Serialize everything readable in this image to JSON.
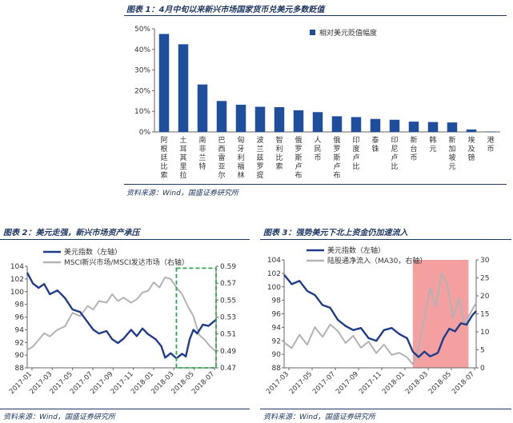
{
  "figures": [
    {
      "title": "图表 1：4月中旬以来新兴市场国家货币兑美元多数贬值",
      "source": "资料来源：Wind，国盛证券研究所"
    },
    {
      "title": "图表 2：美元走强，新兴市场资产承压",
      "source": "资料来源：Wind，国盛证券研究所"
    },
    {
      "title": "图表 3：强势美元下北上资金仍加速流入",
      "source": "资料来源：Wind，国盛证券研究所"
    }
  ],
  "chart_data": [
    {
      "type": "bar",
      "legend": "相对美元贬值幅度",
      "legend_position": "top-right",
      "categories": [
        "阿根廷比索",
        "土耳其里拉",
        "南非兰特",
        "巴西雷亚尔",
        "匈牙利福林",
        "波兰兹罗提",
        "智利比索",
        "俄罗斯卢布",
        "人民币",
        "俄罗斯卢布",
        "印度卢比",
        "泰铢",
        "印尼卢比",
        "新台币",
        "韩元",
        "新加坡元",
        "埃及镑",
        "港币"
      ],
      "values": [
        47.5,
        42.5,
        23,
        15,
        13.2,
        12.2,
        12,
        10.5,
        9.6,
        7.6,
        7.2,
        6.3,
        5.9,
        5,
        4.8,
        4.6,
        1.2,
        0.2
      ],
      "ylim": [
        0,
        50
      ],
      "yticks": [
        0,
        10,
        20,
        30,
        40,
        50
      ],
      "ytick_format": "percent",
      "color": "#1f4e9c"
    },
    {
      "type": "line",
      "legend_position": "top",
      "x_ticks": [
        "2017-01",
        "2017-03",
        "2017-05",
        "2017-07",
        "2017-09",
        "2017-11",
        "2018-01",
        "2018-03",
        "2018-05",
        "2018-07"
      ],
      "y_left": {
        "lim": [
          88,
          104
        ],
        "ticks": [
          88,
          90,
          92,
          94,
          96,
          98,
          100,
          102,
          104
        ]
      },
      "y_right": {
        "lim": [
          0.47,
          0.59
        ],
        "ticks": [
          0.47,
          0.49,
          0.51,
          0.53,
          0.55,
          0.57,
          0.59
        ]
      },
      "series": [
        {
          "name": "美元指数（左轴）",
          "axis": "left",
          "color": "#1f3d8c",
          "points": [
            [
              0,
              103
            ],
            [
              0.03,
              101.3
            ],
            [
              0.06,
              100.6
            ],
            [
              0.09,
              101.2
            ],
            [
              0.12,
              99.6
            ],
            [
              0.16,
              100.2
            ],
            [
              0.2,
              99.0
            ],
            [
              0.24,
              97.2
            ],
            [
              0.28,
              96.8
            ],
            [
              0.32,
              95.2
            ],
            [
              0.35,
              94.0
            ],
            [
              0.38,
              93.4
            ],
            [
              0.42,
              93.8
            ],
            [
              0.45,
              92.5
            ],
            [
              0.48,
              91.9
            ],
            [
              0.51,
              92.6
            ],
            [
              0.55,
              94.0
            ],
            [
              0.58,
              93.0
            ],
            [
              0.61,
              94.2
            ],
            [
              0.64,
              93.3
            ],
            [
              0.68,
              92.5
            ],
            [
              0.71,
              91.4
            ],
            [
              0.73,
              89.6
            ],
            [
              0.76,
              90.3
            ],
            [
              0.79,
              89.5
            ],
            [
              0.82,
              90.2
            ],
            [
              0.84,
              89.8
            ],
            [
              0.86,
              92.5
            ],
            [
              0.88,
              94.0
            ],
            [
              0.9,
              93.4
            ],
            [
              0.93,
              94.8
            ],
            [
              0.96,
              94.6
            ],
            [
              1.0,
              95.6
            ]
          ]
        },
        {
          "name": "MSCI新兴市场/MSCI发达市场（右轴）",
          "axis": "right",
          "color": "#b3b3b3",
          "points": [
            [
              0,
              0.491
            ],
            [
              0.03,
              0.495
            ],
            [
              0.06,
              0.503
            ],
            [
              0.09,
              0.511
            ],
            [
              0.12,
              0.507
            ],
            [
              0.16,
              0.515
            ],
            [
              0.2,
              0.519
            ],
            [
              0.24,
              0.535
            ],
            [
              0.28,
              0.531
            ],
            [
              0.32,
              0.543
            ],
            [
              0.35,
              0.539
            ],
            [
              0.38,
              0.549
            ],
            [
              0.42,
              0.547
            ],
            [
              0.45,
              0.557
            ],
            [
              0.48,
              0.549
            ],
            [
              0.51,
              0.553
            ],
            [
              0.55,
              0.547
            ],
            [
              0.58,
              0.551
            ],
            [
              0.61,
              0.559
            ],
            [
              0.64,
              0.561
            ],
            [
              0.67,
              0.571
            ],
            [
              0.7,
              0.565
            ],
            [
              0.73,
              0.577
            ],
            [
              0.76,
              0.575
            ],
            [
              0.79,
              0.565
            ],
            [
              0.82,
              0.557
            ],
            [
              0.85,
              0.543
            ],
            [
              0.88,
              0.531
            ],
            [
              0.91,
              0.509
            ],
            [
              0.94,
              0.503
            ],
            [
              0.97,
              0.495
            ],
            [
              1.0,
              0.489
            ]
          ]
        }
      ],
      "annotation": {
        "shape": "dashed-rect",
        "color": "#2ea84a",
        "x_range": [
          0.79,
          1.0
        ],
        "y_range": [
          88,
          103.7
        ]
      }
    },
    {
      "type": "line",
      "legend_position": "top",
      "x_ticks": [
        "2017-03",
        "2017-05",
        "2017-07",
        "2017-09",
        "2017-11",
        "2018-01",
        "2018-03",
        "2018-05",
        "2018-07"
      ],
      "y_left": {
        "lim": [
          88,
          104
        ],
        "ticks": [
          88,
          90,
          92,
          94,
          96,
          98,
          100,
          102,
          104
        ]
      },
      "y_right": {
        "lim": [
          0,
          30
        ],
        "ticks": [
          0,
          5,
          10,
          15,
          20,
          25,
          30
        ]
      },
      "series": [
        {
          "name": "美元指数（左轴）",
          "axis": "left",
          "color": "#1f3d8c",
          "points": [
            [
              0,
              101.8
            ],
            [
              0.04,
              100.4
            ],
            [
              0.08,
              100.9
            ],
            [
              0.12,
              99.4
            ],
            [
              0.16,
              98.8
            ],
            [
              0.2,
              97.3
            ],
            [
              0.24,
              96.9
            ],
            [
              0.28,
              95.1
            ],
            [
              0.32,
              94.2
            ],
            [
              0.36,
              93.6
            ],
            [
              0.4,
              93.9
            ],
            [
              0.44,
              92.4
            ],
            [
              0.48,
              92.0
            ],
            [
              0.52,
              93.6
            ],
            [
              0.56,
              93.9
            ],
            [
              0.6,
              93.0
            ],
            [
              0.64,
              92.4
            ],
            [
              0.67,
              90.4
            ],
            [
              0.7,
              89.6
            ],
            [
              0.73,
              90.4
            ],
            [
              0.76,
              89.7
            ],
            [
              0.8,
              90.2
            ],
            [
              0.83,
              92.4
            ],
            [
              0.86,
              93.8
            ],
            [
              0.89,
              93.4
            ],
            [
              0.92,
              94.6
            ],
            [
              0.95,
              94.4
            ],
            [
              0.98,
              95.8
            ],
            [
              1.0,
              96.4
            ]
          ]
        },
        {
          "name": "陆股通净流入（MA30，右轴）",
          "axis": "right",
          "color": "#b3b3b3",
          "points": [
            [
              0,
              7
            ],
            [
              0.04,
              5.5
            ],
            [
              0.08,
              9.2
            ],
            [
              0.12,
              6.4
            ],
            [
              0.16,
              11.3
            ],
            [
              0.2,
              8.6
            ],
            [
              0.24,
              12.1
            ],
            [
              0.28,
              10.2
            ],
            [
              0.32,
              6.9
            ],
            [
              0.36,
              8.9
            ],
            [
              0.4,
              5.6
            ],
            [
              0.44,
              7.3
            ],
            [
              0.48,
              4.1
            ],
            [
              0.52,
              6.5
            ],
            [
              0.56,
              3.6
            ],
            [
              0.6,
              4.2
            ],
            [
              0.64,
              2.9
            ],
            [
              0.67,
              1.0
            ],
            [
              0.7,
              5.3
            ],
            [
              0.73,
              13.8
            ],
            [
              0.76,
              22.2
            ],
            [
              0.79,
              17.1
            ],
            [
              0.82,
              26.2
            ],
            [
              0.85,
              23.1
            ],
            [
              0.88,
              13.9
            ],
            [
              0.91,
              19.4
            ],
            [
              0.94,
              11.9
            ],
            [
              0.97,
              15.2
            ],
            [
              1.0,
              18.1
            ]
          ]
        }
      ],
      "annotation": {
        "shape": "filled-rect",
        "color": "#f08080",
        "x_range": [
          0.67,
          0.96
        ],
        "y_range": [
          88,
          104
        ]
      }
    }
  ]
}
